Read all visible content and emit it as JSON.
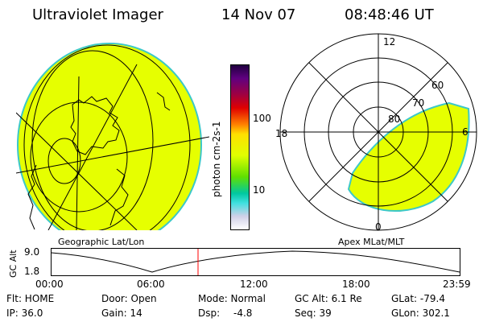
{
  "header": {
    "title": "Ultraviolet Imager",
    "date": "14 Nov 07",
    "time": "08:48:46 UT"
  },
  "panels": {
    "left_label": "Geographic Lat/Lon",
    "right_label": "Apex MLat/MLT"
  },
  "colorbar": {
    "unit_label": "photon cm-2s-1",
    "ticks": [
      "100",
      "10"
    ],
    "colors": [
      "#ffffff",
      "#d0d0e8",
      "#40e0e0",
      "#00c8a0",
      "#60e000",
      "#e0ff00",
      "#ffe000",
      "#ff8000",
      "#e00000",
      "#a00040",
      "#600080",
      "#200040"
    ]
  },
  "polar": {
    "mlt_labels": [
      "12",
      "18",
      "6",
      "0"
    ],
    "lat_labels": [
      "60",
      "70",
      "80"
    ]
  },
  "altitude": {
    "ylabel": "GC Alt",
    "ymax_label": "9.0",
    "ymin_label": "1.8",
    "ticks": [
      "00:00",
      "06:00",
      "12:00",
      "18:00",
      "23:59"
    ]
  },
  "info": {
    "flt": "Flt: HOME",
    "ip": "IP: 36.0",
    "door": "Door: Open",
    "gain": "Gain: 14",
    "mode": "Mode: Normal",
    "dsp_label": "Dsp:",
    "dsp_value": "-4.8",
    "gcalt": "GC Alt: 6.1 Re",
    "seq": "Seq: 39",
    "glat": "GLat: -79.4",
    "glon": "GLon: 302.1"
  },
  "colors": {
    "aurora_fill": "#e6ff00",
    "aurora_edge": "#3cc8c8",
    "marker": "#ff0000"
  }
}
